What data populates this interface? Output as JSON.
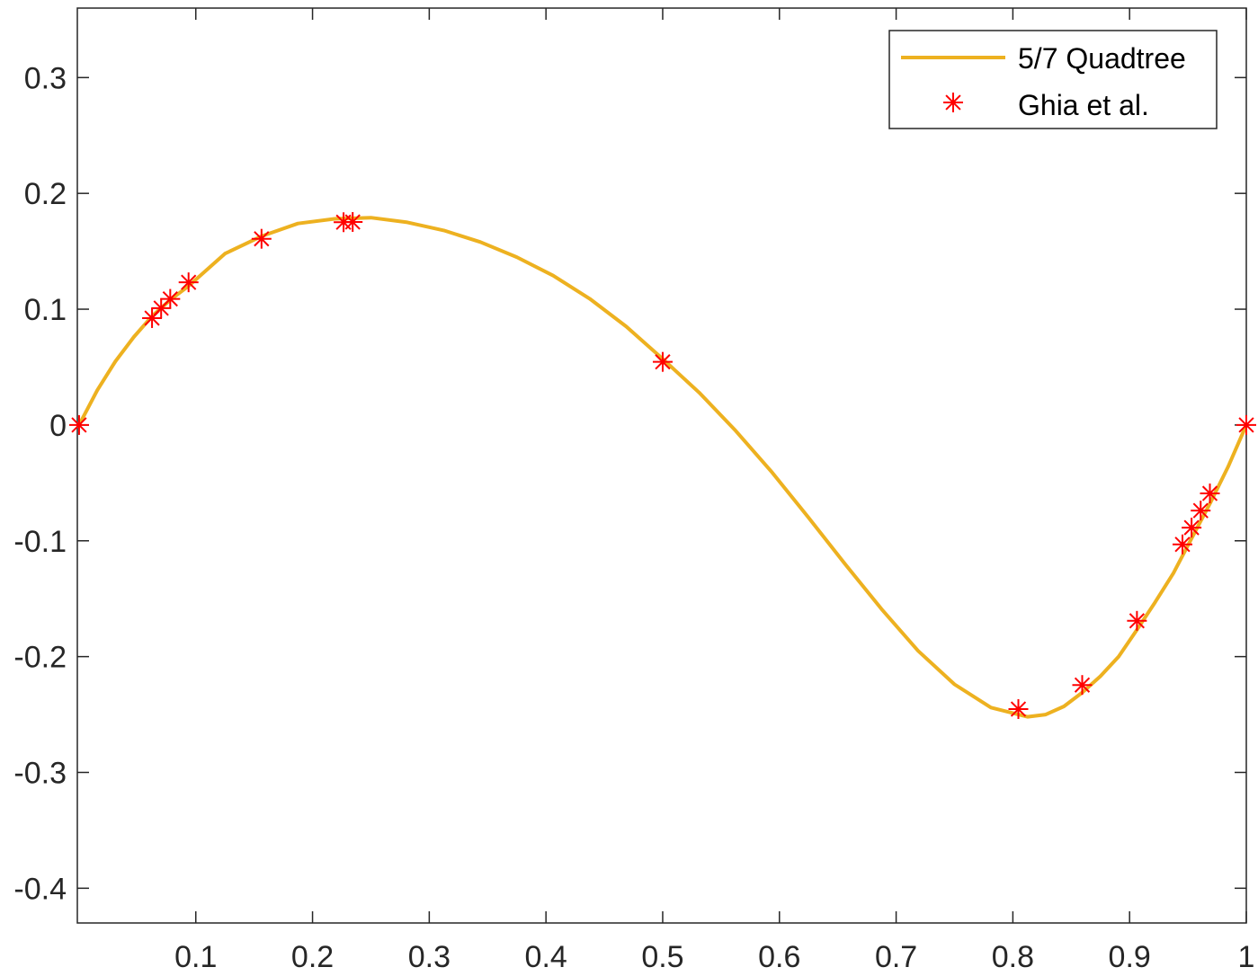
{
  "chart_data": {
    "type": "line",
    "title": "",
    "xlabel": "",
    "ylabel": "",
    "xlim": [
      0,
      1
    ],
    "ylim": [
      -0.43,
      0.36
    ],
    "xticks": [
      0.1,
      0.2,
      0.3,
      0.4,
      0.5,
      0.6,
      0.7,
      0.8,
      0.9,
      1
    ],
    "xtick_labels": [
      "0.1",
      "0.2",
      "0.3",
      "0.4",
      "0.5",
      "0.6",
      "0.7",
      "0.8",
      "0.9",
      "1"
    ],
    "yticks": [
      0.3,
      0.2,
      0.1,
      0,
      -0.1,
      -0.2,
      -0.3,
      -0.4
    ],
    "ytick_labels": [
      "0.3",
      "0.2",
      "0.1",
      "0",
      "-0.1",
      "-0.2",
      "-0.3",
      "-0.4"
    ],
    "grid": false,
    "legend_position": "top-right",
    "series": [
      {
        "name": "5/7 Quadtree",
        "style": "line",
        "color": "#EDB120",
        "x": [
          0,
          0.0156,
          0.0312,
          0.0469,
          0.0625,
          0.0781,
          0.0938,
          0.125,
          0.1562,
          0.1875,
          0.2188,
          0.25,
          0.2812,
          0.3125,
          0.3438,
          0.375,
          0.4062,
          0.4375,
          0.4688,
          0.5,
          0.5312,
          0.5625,
          0.5938,
          0.625,
          0.6562,
          0.6875,
          0.7188,
          0.75,
          0.7812,
          0.8125,
          0.8281,
          0.8438,
          0.8594,
          0.875,
          0.8906,
          0.9062,
          0.9219,
          0.9375,
          0.9531,
          0.9688,
          0.9844,
          1
        ],
        "y": [
          0,
          0.03,
          0.055,
          0.076,
          0.094,
          0.108,
          0.12,
          0.148,
          0.163,
          0.174,
          0.178,
          0.179,
          0.175,
          0.168,
          0.158,
          0.145,
          0.129,
          0.109,
          0.085,
          0.057,
          0.028,
          -0.005,
          -0.041,
          -0.08,
          -0.12,
          -0.159,
          -0.195,
          -0.224,
          -0.244,
          -0.252,
          -0.25,
          -0.243,
          -0.231,
          -0.217,
          -0.2,
          -0.177,
          -0.153,
          -0.128,
          -0.098,
          -0.068,
          -0.036,
          0
        ]
      },
      {
        "name": "Ghia et al.",
        "style": "marker",
        "marker": "asterisk",
        "color": "#FF0000",
        "x": [
          0,
          0.0625,
          0.0703,
          0.0781,
          0.0938,
          0.1563,
          0.2266,
          0.2344,
          0.5,
          0.8047,
          0.8594,
          0.9063,
          0.9453,
          0.9531,
          0.9609,
          0.9688,
          1
        ],
        "y": [
          0,
          0.0923,
          0.1009,
          0.1089,
          0.1232,
          0.1608,
          0.1751,
          0.1753,
          0.0545,
          -0.2453,
          -0.2245,
          -0.1691,
          -0.1031,
          -0.0886,
          -0.0739,
          -0.0591,
          0
        ]
      }
    ]
  }
}
